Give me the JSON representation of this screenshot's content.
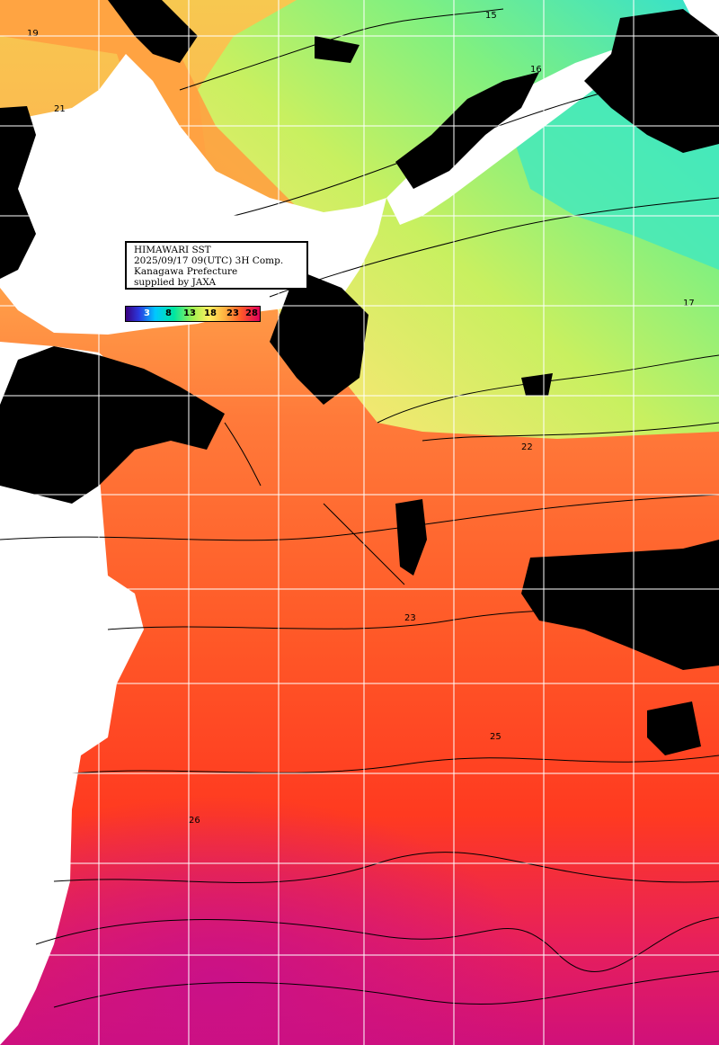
{
  "map": {
    "title_line1": "HIMAWARI SST",
    "title_line2": "2025/09/17 09(UTC) 3H Comp.",
    "title_line3": "Kanagawa Prefecture",
    "title_line4": "supplied by JAXA",
    "legend_labels": [
      "3",
      "8",
      "13",
      "18",
      "23",
      "28"
    ],
    "contour_labels": [
      "15",
      "16",
      "17",
      "19",
      "21",
      "22",
      "23",
      "25",
      "26"
    ],
    "colors": {
      "land": "#ffffff",
      "cloud_no_data": "#000000",
      "contour": "#000000",
      "grid": "#ffffff",
      "sst_cold": "#30e0d0",
      "sst_cool": "#a0f060",
      "sst_mild": "#f0f070",
      "sst_warm": "#ffa040",
      "sst_hot": "#ff5020",
      "sst_hottest": "#d0107a"
    }
  }
}
